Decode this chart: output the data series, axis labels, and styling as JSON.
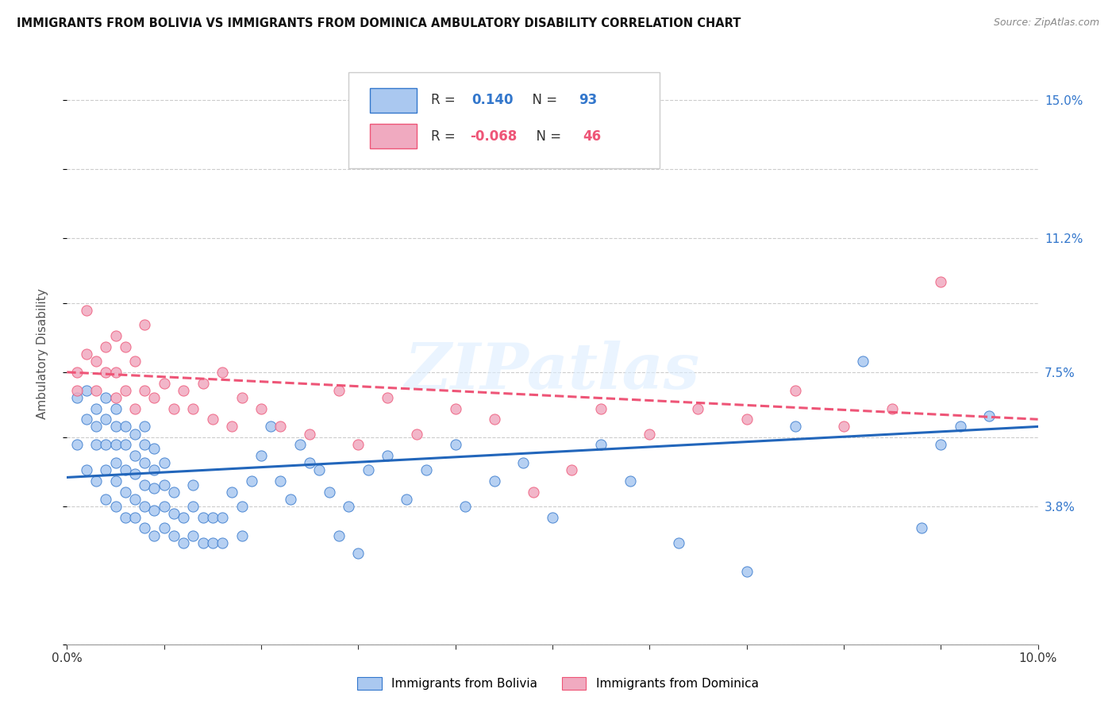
{
  "title": "IMMIGRANTS FROM BOLIVIA VS IMMIGRANTS FROM DOMINICA AMBULATORY DISABILITY CORRELATION CHART",
  "source": "Source: ZipAtlas.com",
  "ylabel": "Ambulatory Disability",
  "xlim": [
    0.0,
    0.1
  ],
  "ylim": [
    0.0,
    0.16
  ],
  "ytick_vals": [
    0.0,
    0.038,
    0.057,
    0.075,
    0.094,
    0.112,
    0.131,
    0.15
  ],
  "ytick_labels": [
    "",
    "3.8%",
    "",
    "7.5%",
    "",
    "11.2%",
    "",
    "15.0%"
  ],
  "xtick_vals": [
    0.0,
    0.01,
    0.02,
    0.03,
    0.04,
    0.05,
    0.06,
    0.07,
    0.08,
    0.09,
    0.1
  ],
  "bolivia_color": "#aac8f0",
  "dominica_color": "#f0aac0",
  "bolivia_edge_color": "#3377cc",
  "dominica_edge_color": "#ee5577",
  "bolivia_line_color": "#2266bb",
  "dominica_line_color": "#ee5577",
  "bolivia_R": 0.14,
  "bolivia_N": 93,
  "dominica_R": -0.068,
  "dominica_N": 46,
  "watermark": "ZIPatlas",
  "bolivia_x": [
    0.001,
    0.001,
    0.002,
    0.002,
    0.002,
    0.003,
    0.003,
    0.003,
    0.003,
    0.004,
    0.004,
    0.004,
    0.004,
    0.004,
    0.005,
    0.005,
    0.005,
    0.005,
    0.005,
    0.005,
    0.006,
    0.006,
    0.006,
    0.006,
    0.006,
    0.007,
    0.007,
    0.007,
    0.007,
    0.007,
    0.008,
    0.008,
    0.008,
    0.008,
    0.008,
    0.008,
    0.009,
    0.009,
    0.009,
    0.009,
    0.009,
    0.01,
    0.01,
    0.01,
    0.01,
    0.011,
    0.011,
    0.011,
    0.012,
    0.012,
    0.013,
    0.013,
    0.013,
    0.014,
    0.014,
    0.015,
    0.015,
    0.016,
    0.016,
    0.017,
    0.018,
    0.018,
    0.019,
    0.02,
    0.021,
    0.022,
    0.023,
    0.024,
    0.025,
    0.026,
    0.027,
    0.028,
    0.029,
    0.03,
    0.031,
    0.033,
    0.035,
    0.037,
    0.04,
    0.041,
    0.044,
    0.047,
    0.05,
    0.055,
    0.058,
    0.063,
    0.07,
    0.075,
    0.082,
    0.088,
    0.09,
    0.092,
    0.095
  ],
  "bolivia_y": [
    0.055,
    0.068,
    0.048,
    0.062,
    0.07,
    0.045,
    0.055,
    0.06,
    0.065,
    0.04,
    0.048,
    0.055,
    0.062,
    0.068,
    0.038,
    0.045,
    0.05,
    0.055,
    0.06,
    0.065,
    0.035,
    0.042,
    0.048,
    0.055,
    0.06,
    0.035,
    0.04,
    0.047,
    0.052,
    0.058,
    0.032,
    0.038,
    0.044,
    0.05,
    0.055,
    0.06,
    0.03,
    0.037,
    0.043,
    0.048,
    0.054,
    0.032,
    0.038,
    0.044,
    0.05,
    0.03,
    0.036,
    0.042,
    0.028,
    0.035,
    0.03,
    0.038,
    0.044,
    0.028,
    0.035,
    0.028,
    0.035,
    0.028,
    0.035,
    0.042,
    0.03,
    0.038,
    0.045,
    0.052,
    0.06,
    0.045,
    0.04,
    0.055,
    0.05,
    0.048,
    0.042,
    0.03,
    0.038,
    0.025,
    0.048,
    0.052,
    0.04,
    0.048,
    0.055,
    0.038,
    0.045,
    0.05,
    0.035,
    0.055,
    0.045,
    0.028,
    0.02,
    0.06,
    0.078,
    0.032,
    0.055,
    0.06,
    0.063
  ],
  "dominica_x": [
    0.001,
    0.001,
    0.002,
    0.002,
    0.003,
    0.003,
    0.004,
    0.004,
    0.005,
    0.005,
    0.005,
    0.006,
    0.006,
    0.007,
    0.007,
    0.008,
    0.008,
    0.009,
    0.01,
    0.011,
    0.012,
    0.013,
    0.014,
    0.015,
    0.016,
    0.017,
    0.018,
    0.02,
    0.022,
    0.025,
    0.028,
    0.03,
    0.033,
    0.036,
    0.04,
    0.044,
    0.048,
    0.052,
    0.055,
    0.06,
    0.065,
    0.07,
    0.075,
    0.08,
    0.085,
    0.09
  ],
  "dominica_y": [
    0.07,
    0.075,
    0.08,
    0.092,
    0.07,
    0.078,
    0.075,
    0.082,
    0.068,
    0.075,
    0.085,
    0.07,
    0.082,
    0.065,
    0.078,
    0.07,
    0.088,
    0.068,
    0.072,
    0.065,
    0.07,
    0.065,
    0.072,
    0.062,
    0.075,
    0.06,
    0.068,
    0.065,
    0.06,
    0.058,
    0.07,
    0.055,
    0.068,
    0.058,
    0.065,
    0.062,
    0.042,
    0.048,
    0.065,
    0.058,
    0.065,
    0.062,
    0.07,
    0.06,
    0.065,
    0.1
  ]
}
